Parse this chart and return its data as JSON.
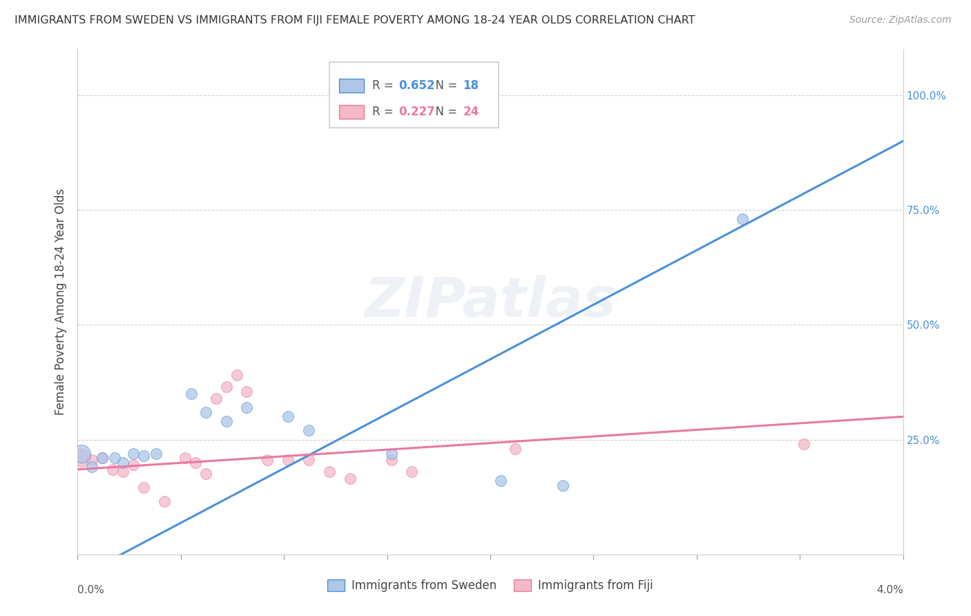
{
  "title": "IMMIGRANTS FROM SWEDEN VS IMMIGRANTS FROM FIJI FEMALE POVERTY AMONG 18-24 YEAR OLDS CORRELATION CHART",
  "source": "Source: ZipAtlas.com",
  "ylabel": "Female Poverty Among 18-24 Year Olds",
  "watermark": "ZIPatlas",
  "xlim": [
    0.0,
    4.0
  ],
  "ylim": [
    0.0,
    110.0
  ],
  "sweden_R": 0.652,
  "sweden_N": 18,
  "fiji_R": 0.227,
  "fiji_N": 24,
  "sweden_color": "#aec6e8",
  "fiji_color": "#f4b8c8",
  "sweden_line_color": "#4a90d9",
  "fiji_line_color": "#e8799f",
  "legend_sweden_label": "Immigrants from Sweden",
  "legend_fiji_label": "Immigrants from Fiji",
  "sweden_scatter": [
    [
      0.02,
      22.0
    ],
    [
      0.07,
      19.0
    ],
    [
      0.12,
      21.0
    ],
    [
      0.18,
      21.0
    ],
    [
      0.22,
      20.0
    ],
    [
      0.27,
      22.0
    ],
    [
      0.32,
      21.5
    ],
    [
      0.38,
      22.0
    ],
    [
      0.55,
      35.0
    ],
    [
      0.62,
      31.0
    ],
    [
      0.72,
      29.0
    ],
    [
      0.82,
      32.0
    ],
    [
      1.02,
      30.0
    ],
    [
      1.12,
      27.0
    ],
    [
      1.52,
      22.0
    ],
    [
      2.05,
      16.0
    ],
    [
      2.35,
      15.0
    ],
    [
      3.22,
      73.0
    ]
  ],
  "fiji_scatter": [
    [
      0.02,
      21.0
    ],
    [
      0.07,
      20.5
    ],
    [
      0.12,
      21.0
    ],
    [
      0.17,
      18.5
    ],
    [
      0.22,
      18.0
    ],
    [
      0.27,
      19.5
    ],
    [
      0.32,
      14.5
    ],
    [
      0.42,
      11.5
    ],
    [
      0.52,
      21.0
    ],
    [
      0.57,
      20.0
    ],
    [
      0.62,
      17.5
    ],
    [
      0.67,
      34.0
    ],
    [
      0.72,
      36.5
    ],
    [
      0.77,
      39.0
    ],
    [
      0.82,
      35.5
    ],
    [
      0.92,
      20.5
    ],
    [
      1.02,
      20.5
    ],
    [
      1.12,
      20.5
    ],
    [
      1.22,
      18.0
    ],
    [
      1.32,
      16.5
    ],
    [
      1.52,
      20.5
    ],
    [
      1.62,
      18.0
    ],
    [
      2.12,
      23.0
    ],
    [
      3.52,
      24.0
    ]
  ],
  "sweden_line": [
    [
      0.0,
      -5.0
    ],
    [
      4.0,
      90.0
    ]
  ],
  "fiji_line": [
    [
      0.0,
      18.5
    ],
    [
      4.0,
      30.0
    ]
  ],
  "grid_color": "#d0d0d0",
  "background_color": "#ffffff",
  "y_right_labels": [
    "",
    "25.0%",
    "50.0%",
    "75.0%",
    "100.0%"
  ],
  "y_right_ticks": [
    0,
    25,
    50,
    75,
    100
  ]
}
